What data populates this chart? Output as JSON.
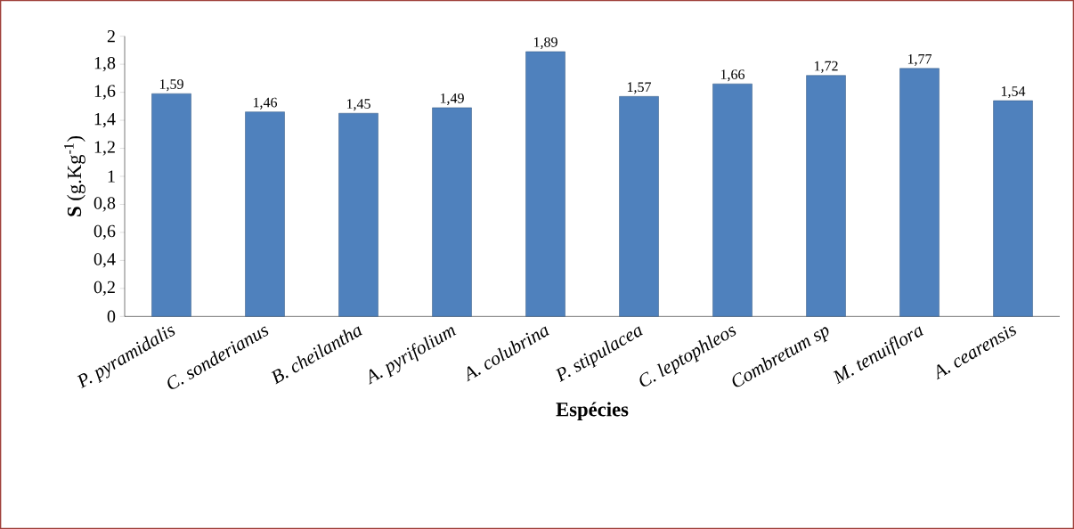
{
  "chart_data": {
    "type": "bar",
    "xlabel": "Espécies",
    "ylabel": "**S** (g.Kg$^{-1}$)",
    "categories": [
      "P. pyramidalis",
      "C. sonderianus",
      "B. cheilantha",
      "A. pyrifolium",
      "A. colubrina",
      "P. stipulacea",
      "C. leptophleos",
      "Combretum sp",
      "M. tenuiflora",
      "A.  cearensis"
    ],
    "values": [
      1.59,
      1.46,
      1.45,
      1.49,
      1.89,
      1.57,
      1.66,
      1.72,
      1.77,
      1.54
    ],
    "value_labels": [
      "1,59",
      "1,46",
      "1,45",
      "1,49",
      "1,89",
      "1,57",
      "1,66",
      "1,72",
      "1,77",
      "1,54"
    ],
    "color": "#4f81bd",
    "ylim": [
      0,
      2
    ],
    "yticks": [
      0,
      {
        "value": 0.2,
        "label": "0,2"
      },
      {
        "value": 0.4,
        "label": "0,4"
      },
      {
        "value": 0.6,
        "label": "0,6"
      },
      {
        "value": 0.8,
        "label": "0,8"
      },
      1,
      {
        "value": 1.2,
        "label": "1,2"
      },
      {
        "value": 1.4,
        "label": "1,4"
      },
      {
        "value": 1.6,
        "label": "1,6"
      },
      {
        "value": 1.8,
        "label": "1,8"
      },
      2
    ],
    "grid": false
  }
}
